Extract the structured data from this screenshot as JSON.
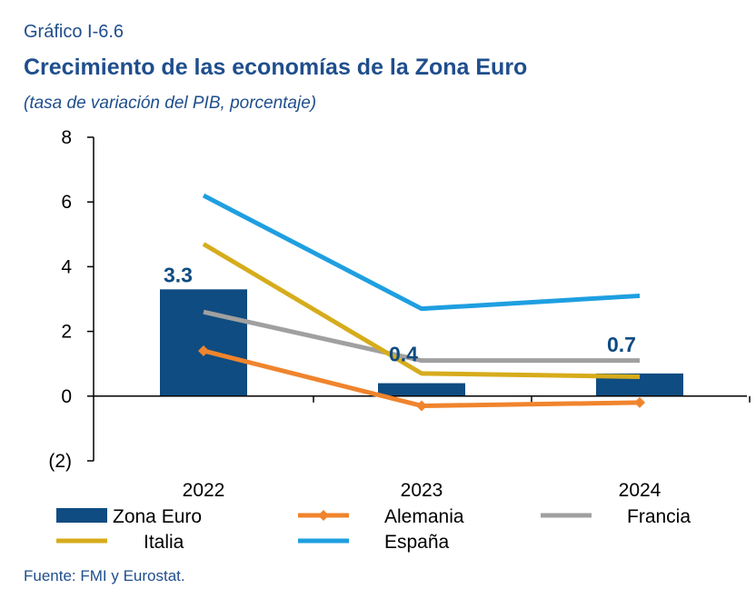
{
  "figure": {
    "number": "Gráfico I-6.6",
    "title": "Crecimiento de las economías de la Zona Euro",
    "subtitle": "(tasa de variación del PIB, porcentaje)",
    "source": "Fuente: FMI y Eurostat."
  },
  "chart_data": {
    "type": "bar",
    "categories": [
      "2022",
      "2023",
      "2024"
    ],
    "ylim": [
      -2,
      8
    ],
    "yticks": [
      -2,
      0,
      2,
      4,
      6,
      8
    ],
    "ytick_labels": [
      "(2)",
      "0",
      "2",
      "4",
      "6",
      "8"
    ],
    "grid": false,
    "legend_position": "bottom",
    "bar_series": {
      "name": "Zona Euro",
      "values": [
        3.3,
        0.4,
        0.7
      ],
      "data_labels": [
        "3.3",
        "0.4",
        "0.7"
      ],
      "color": "#0f4c81"
    },
    "line_series": [
      {
        "name": "Alemania",
        "values": [
          1.4,
          -0.3,
          -0.2
        ],
        "color": "#f0842d",
        "marker": "diamond"
      },
      {
        "name": "Francia",
        "values": [
          2.6,
          1.1,
          1.1
        ],
        "color": "#a0a0a0",
        "marker": "none"
      },
      {
        "name": "Italia",
        "values": [
          4.7,
          0.7,
          0.6
        ],
        "color": "#d6ac1c",
        "marker": "none"
      },
      {
        "name": "España",
        "values": [
          6.2,
          2.7,
          3.1
        ],
        "color": "#1f9fe0",
        "marker": "none"
      }
    ]
  }
}
